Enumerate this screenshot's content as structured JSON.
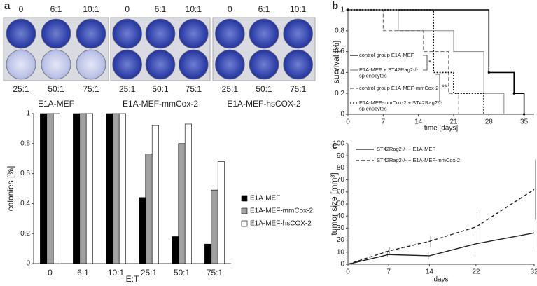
{
  "panel_labels": [
    "a",
    "b",
    "c"
  ],
  "plates": [
    {
      "name": "E1A-MEF",
      "top": [
        "0",
        "6:1",
        "10:1"
      ],
      "bottom": [
        "25:1",
        "50:1",
        "75:1"
      ]
    },
    {
      "name": "E1A-MEF-mmCox-2",
      "top": [
        "0",
        "6:1",
        "10:1"
      ],
      "bottom": [
        "25:1",
        "50:1",
        "75:1"
      ]
    },
    {
      "name": "E1A-MEF-hsCOX-2",
      "top": [
        "0",
        "6:1",
        "10:1"
      ],
      "bottom": [
        "25:1",
        "50:1",
        "75:1"
      ]
    }
  ],
  "chart_data": [
    {
      "type": "bar",
      "xlabel": "E:T",
      "ylabel": "colonies [%]",
      "categories": [
        "0",
        "6:1",
        "10:1",
        "25:1",
        "50:1",
        "75:1"
      ],
      "series": [
        {
          "name": "E1A-MEF",
          "color": "#000000",
          "values": [
            1,
            1,
            1,
            0.44,
            0.18,
            0.13
          ]
        },
        {
          "name": "E1A-MEF-mmCox-2",
          "color": "#a0a0a0",
          "values": [
            1,
            1,
            1,
            0.73,
            0.8,
            0.49
          ]
        },
        {
          "name": "E1A-MEF-hsCOX-2",
          "color": "#ffffff",
          "values": [
            1,
            1,
            1,
            0.92,
            0.93,
            0.68
          ]
        }
      ],
      "ylim": [
        0,
        1
      ],
      "yticks": [
        0,
        0.2,
        0.4,
        0.6,
        0.8,
        1
      ],
      "legend": "right"
    },
    {
      "type": "step",
      "xlabel": "time [days]",
      "ylabel": "survival [%]",
      "series": [
        {
          "name": "control group E1A-MEF",
          "color": "#000000",
          "style": "solid",
          "x": [
            0,
            28,
            33,
            35
          ],
          "values": [
            1,
            0.4,
            0.2,
            0
          ]
        },
        {
          "name": "E1A-MEF + ST42Rag2-/-\nsplenocytes",
          "color": "#888888",
          "style": "solid",
          "x": [
            0,
            10,
            21,
            27,
            31
          ],
          "values": [
            1,
            0.8,
            0.6,
            0.2,
            0
          ]
        },
        {
          "name": "control group E1A-MEF-mmCox-2",
          "color": "#666666",
          "style": "dashed",
          "x": [
            0,
            7,
            15,
            20,
            22
          ],
          "values": [
            1,
            0.8,
            0.6,
            0.2,
            0
          ]
        },
        {
          "name": "E1A-MEF-mmCox-2 + ST42Rag2-/-\nsplenocytes",
          "color": "#111111",
          "style": "dotted",
          "x": [
            0,
            17,
            21,
            27
          ],
          "values": [
            1,
            0.4,
            0.2,
            0
          ]
        }
      ],
      "annotations": [
        "*",
        "**"
      ],
      "xlim": [
        0,
        37
      ],
      "xticks": [
        0,
        7,
        14,
        21,
        28,
        35
      ],
      "ylim": [
        0,
        1
      ],
      "yticks": [
        0,
        0.2,
        0.4,
        0.6,
        0.8,
        1
      ]
    },
    {
      "type": "line",
      "xlabel": "days",
      "ylabel": "tumor size [mm³]",
      "series": [
        {
          "name": "ST42Rag2-/- + E1A-MEF",
          "color": "#222222",
          "style": "solid",
          "x": [
            0,
            7,
            14,
            22,
            32
          ],
          "values": [
            0,
            8,
            7,
            17,
            26
          ],
          "errors": [
            0,
            2,
            3,
            8,
            13
          ]
        },
        {
          "name": "ST42Rag2-/- + E1A-MEF-mmCox-2",
          "color": "#222222",
          "style": "dashed",
          "x": [
            0,
            7,
            14,
            22,
            32
          ],
          "values": [
            0,
            11,
            19,
            31,
            62
          ],
          "errors": [
            0,
            3,
            5,
            12,
            25
          ]
        }
      ],
      "xlim": [
        0,
        32
      ],
      "xticks": [
        0,
        7,
        14,
        22,
        32
      ],
      "ylim": [
        0,
        100
      ],
      "yticks": [
        0,
        10,
        20,
        30,
        40,
        50,
        60,
        70,
        80,
        90,
        100
      ]
    }
  ]
}
